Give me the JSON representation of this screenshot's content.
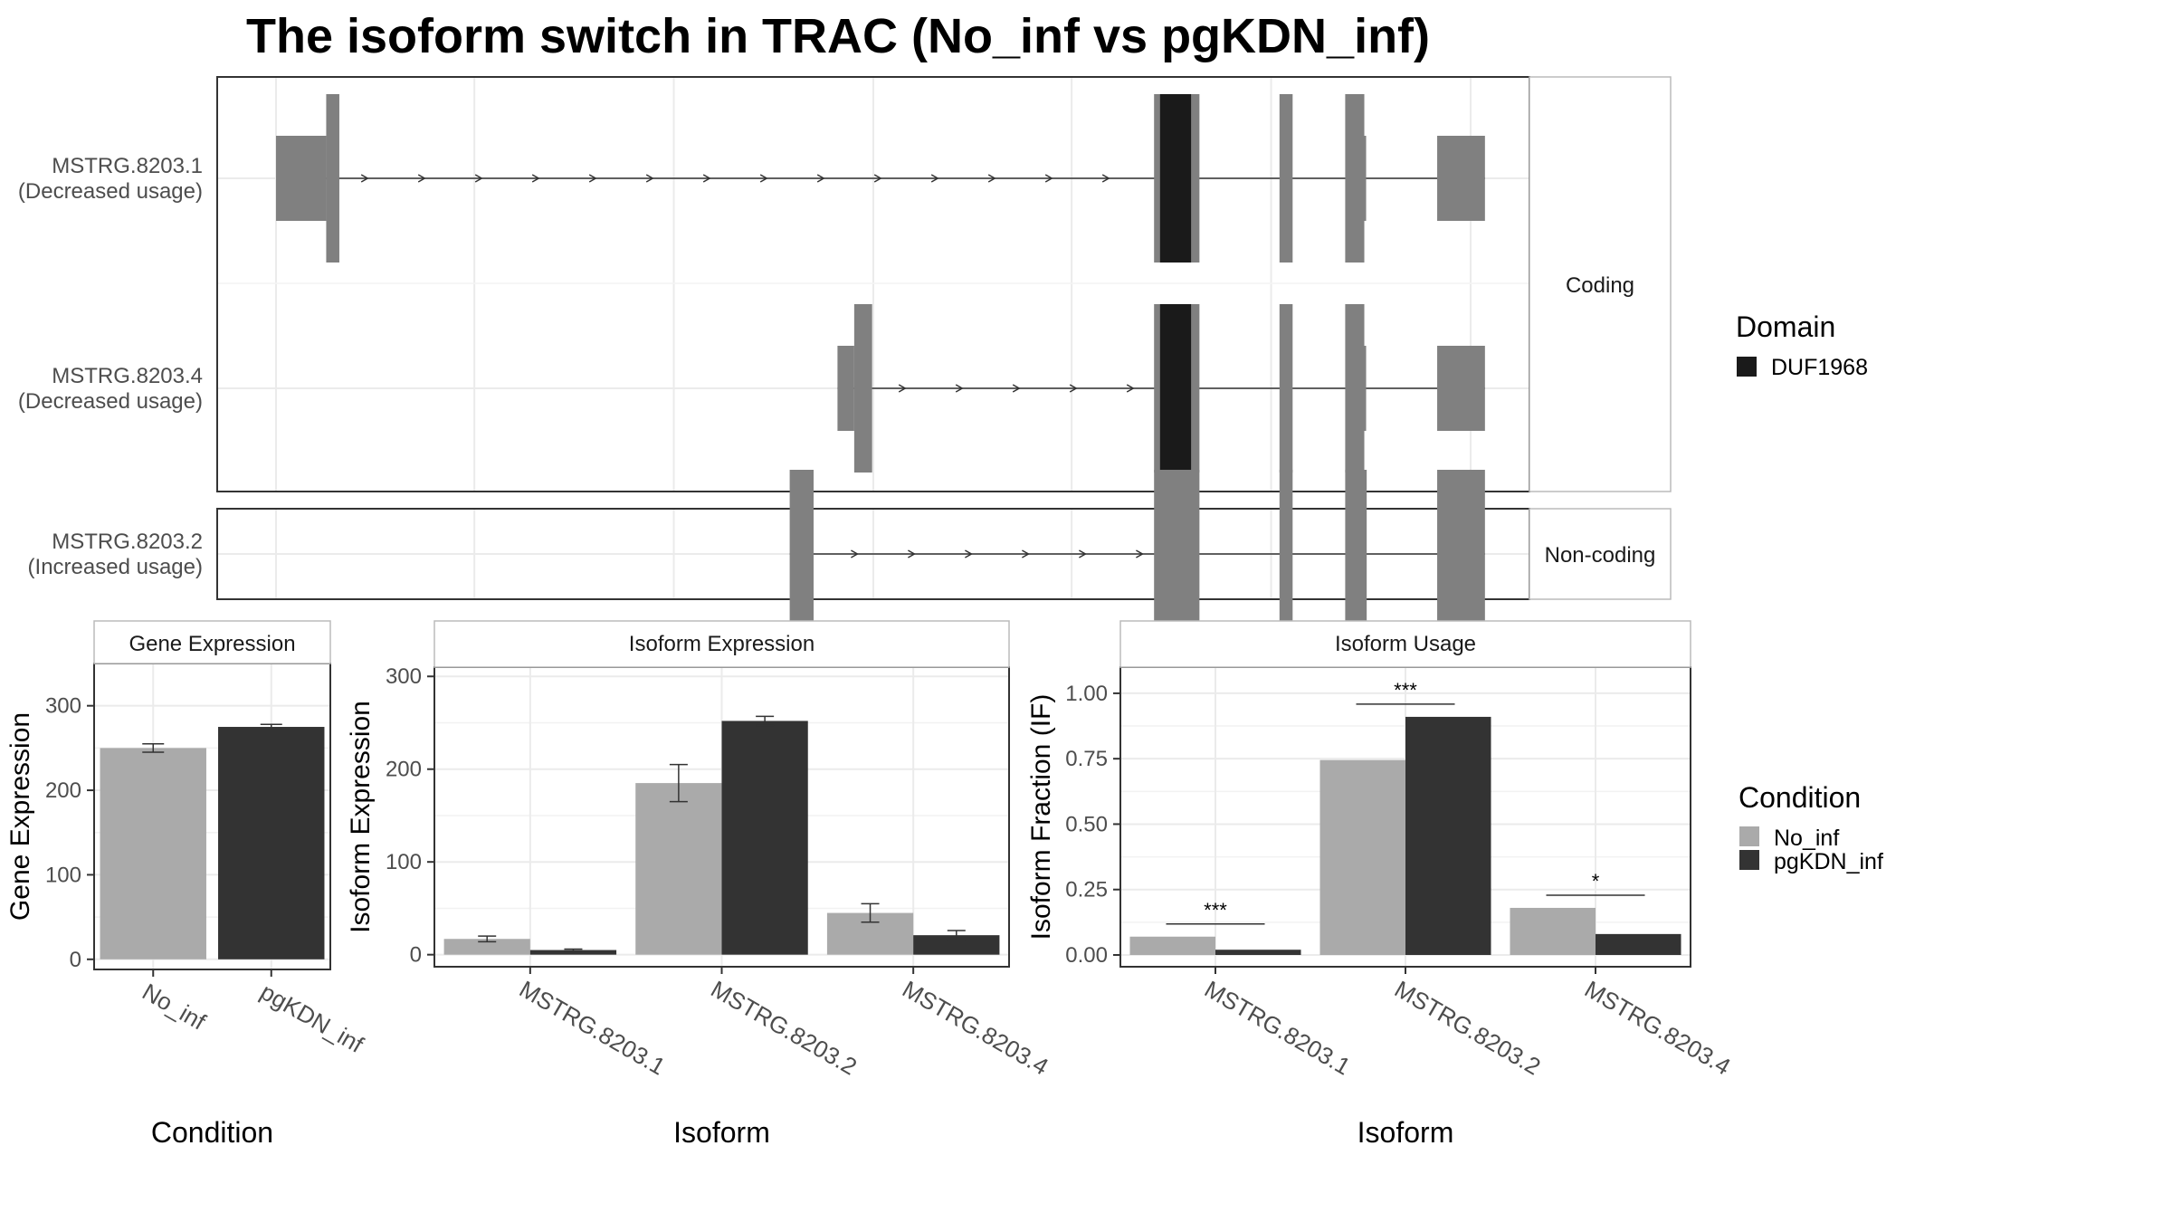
{
  "title": "The isoform switch in TRAC (No_inf vs pgKDN_inf)",
  "structure": {
    "coord_range": [
      0,
      1000
    ],
    "facets": [
      "Coding",
      "Non-coding"
    ],
    "transcripts": [
      {
        "id": "MSTRG.8203.1",
        "note": "(Decreased usage)",
        "facet": "Coding",
        "tall": [
          [
            42,
            53
          ],
          [
            735,
            773
          ],
          [
            840,
            851
          ],
          [
            895,
            911
          ]
        ],
        "short": [
          [
            0,
            42
          ],
          [
            911,
            912
          ],
          [
            972,
            1012
          ]
        ],
        "domain": [
          [
            740,
            766
          ]
        ],
        "arrows_from": 60,
        "arrows_to": 735
      },
      {
        "id": "MSTRG.8203.4",
        "note": "(Decreased usage)",
        "facet": "Coding",
        "tall": [
          [
            484,
            499
          ],
          [
            735,
            773
          ],
          [
            840,
            851
          ],
          [
            895,
            911
          ]
        ],
        "short": [
          [
            470,
            484
          ],
          [
            911,
            912
          ],
          [
            972,
            1012
          ]
        ],
        "domain": [
          [
            740,
            766
          ]
        ],
        "arrows_from": 510,
        "arrows_to": 735
      },
      {
        "id": "MSTRG.8203.2",
        "note": "(Increased usage)",
        "facet": "Non-coding",
        "tall": [
          [
            430,
            450
          ],
          [
            735,
            773
          ],
          [
            840,
            851
          ],
          [
            895,
            913
          ],
          [
            972,
            1012
          ]
        ],
        "short": [],
        "domain": [],
        "arrows_from": 470,
        "arrows_to": 735
      }
    ]
  },
  "legends": {
    "domain": {
      "title": "Domain",
      "items": [
        {
          "label": "DUF1968",
          "color": "#1a1a1a"
        }
      ]
    },
    "condition": {
      "title": "Condition",
      "items": [
        {
          "label": "No_inf",
          "color": "#aaaaaa"
        },
        {
          "label": "pgKDN_inf",
          "color": "#333333"
        }
      ]
    }
  },
  "colors": {
    "exon": "#808080",
    "domain": "#1a1a1a",
    "no_inf": "#aaaaaa",
    "pgkdn_inf": "#333333"
  },
  "chart_data": [
    {
      "type": "bar",
      "title": "Gene Expression",
      "xlabel": "Condition",
      "ylabel": "Gene Expression",
      "categories": [
        "No_inf",
        "pgKDN_inf"
      ],
      "values": [
        250,
        275
      ],
      "errors": [
        5,
        3
      ],
      "colors": [
        "#aaaaaa",
        "#333333"
      ],
      "ylim": [
        -12,
        350
      ],
      "yticks": [
        0,
        100,
        200,
        300
      ]
    },
    {
      "type": "bar",
      "title": "Isoform Expression",
      "xlabel": "Isoform",
      "ylabel": "Isoform Expression",
      "categories": [
        "MSTRG.8203.1",
        "MSTRG.8203.2",
        "MSTRG.8203.4"
      ],
      "series": [
        {
          "name": "No_inf",
          "values": [
            17,
            185,
            45
          ],
          "errors": [
            3,
            20,
            10
          ]
        },
        {
          "name": "pgKDN_inf",
          "values": [
            5,
            252,
            21
          ],
          "errors": [
            1,
            5,
            5
          ]
        }
      ],
      "ylim": [
        -13,
        310
      ],
      "yticks": [
        0,
        100,
        200,
        300
      ]
    },
    {
      "type": "bar",
      "title": "Isoform Usage",
      "xlabel": "Isoform",
      "ylabel": "Isoform Fraction (IF)",
      "categories": [
        "MSTRG.8203.1",
        "MSTRG.8203.2",
        "MSTRG.8203.4"
      ],
      "series": [
        {
          "name": "No_inf",
          "values": [
            0.07,
            0.745,
            0.18
          ]
        },
        {
          "name": "pgKDN_inf",
          "values": [
            0.02,
            0.91,
            0.08
          ]
        }
      ],
      "significance": [
        "***",
        "***",
        "*"
      ],
      "ylim": [
        -0.045,
        1.1
      ],
      "yticks": [
        0.0,
        0.25,
        0.5,
        0.75,
        1.0
      ]
    }
  ]
}
